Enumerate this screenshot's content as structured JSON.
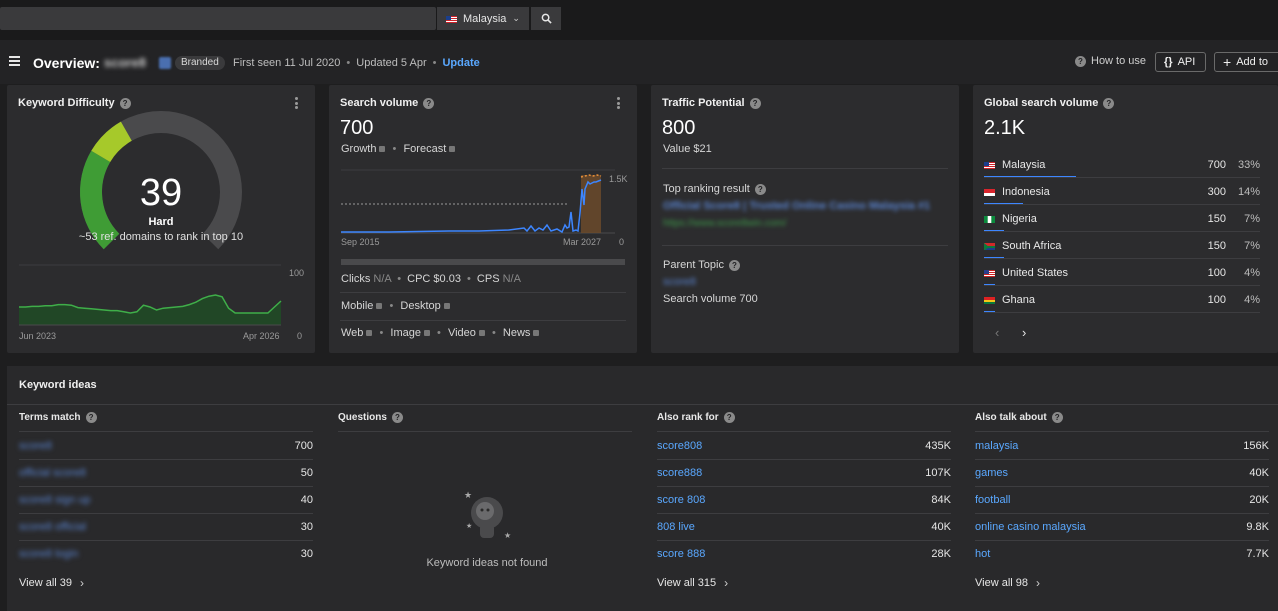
{
  "topbar": {
    "country": "Malaysia"
  },
  "header": {
    "title": "Overview:",
    "keyword": "score8",
    "badge": "Branded",
    "first_seen": "First seen 11 Jul 2020",
    "updated": "Updated 5 Apr",
    "update_link": "Update",
    "how_to_use": "How to use",
    "api": "API",
    "add_to": "Add to"
  },
  "kd": {
    "title": "Keyword Difficulty",
    "value": "39",
    "level": "Hard",
    "subtitle": "~53 ref. domains to rank in top 10",
    "ymax": "100",
    "ymin": "0",
    "x_start": "Jun 2023",
    "x_end": "Apr 2026",
    "gauge_fraction": 0.39,
    "series": [
      30,
      30,
      31,
      31,
      32,
      32,
      34,
      34,
      33,
      29,
      28,
      27,
      26,
      25,
      24,
      24,
      22,
      20,
      22,
      33,
      30,
      25,
      28,
      29,
      30,
      31,
      34,
      38,
      44,
      48,
      50,
      47,
      28,
      20,
      20,
      20,
      20,
      20,
      20,
      30,
      40
    ]
  },
  "sv": {
    "title": "Search volume",
    "value": "700",
    "growth": "Growth",
    "forecast": "Forecast",
    "ymax": "1.5K",
    "ymin": "0",
    "x_start": "Sep 2015",
    "x_end": "Mar 2027",
    "clicks": "Clicks",
    "clicks_val": "N/A",
    "cpc": "CPC $0.03",
    "cps": "CPS",
    "cps_val": "N/A",
    "mobile": "Mobile",
    "desktop": "Desktop",
    "web": "Web",
    "image": "Image",
    "video": "Video",
    "news": "News"
  },
  "tp": {
    "title": "Traffic Potential",
    "value": "800",
    "value_label": "Value $21",
    "top_ranking": "Top ranking result",
    "result_title": "Official Score8 | Trusted Online Casino Malaysia #1",
    "result_url": "https://www.score8win.com/",
    "parent_topic": "Parent Topic",
    "parent_kw": "score8",
    "parent_sv": "Search volume 700"
  },
  "gsv": {
    "title": "Global search volume",
    "value": "2.1K",
    "rows": [
      {
        "country": "Malaysia",
        "value": "700",
        "pct": "33%",
        "share": 0.33
      },
      {
        "country": "Indonesia",
        "value": "300",
        "pct": "14%",
        "share": 0.14
      },
      {
        "country": "Nigeria",
        "value": "150",
        "pct": "7%",
        "share": 0.07
      },
      {
        "country": "South Africa",
        "value": "150",
        "pct": "7%",
        "share": 0.07
      },
      {
        "country": "United States",
        "value": "100",
        "pct": "4%",
        "share": 0.04
      },
      {
        "country": "Ghana",
        "value": "100",
        "pct": "4%",
        "share": 0.04
      }
    ]
  },
  "ideas": {
    "title": "Keyword ideas",
    "terms_match": {
      "title": "Terms match",
      "rows": [
        {
          "kw": "score8",
          "v": "700"
        },
        {
          "kw": "official score8",
          "v": "50"
        },
        {
          "kw": "score8 sign up",
          "v": "40"
        },
        {
          "kw": "score8 official",
          "v": "30"
        },
        {
          "kw": "score8 login",
          "v": "30"
        }
      ],
      "view_all": "View all 39"
    },
    "questions": {
      "title": "Questions",
      "empty": "Keyword ideas not found"
    },
    "also_rank": {
      "title": "Also rank for",
      "rows": [
        {
          "kw": "score808",
          "v": "435K"
        },
        {
          "kw": "score888",
          "v": "107K"
        },
        {
          "kw": "score 808",
          "v": "84K"
        },
        {
          "kw": "808 live",
          "v": "40K"
        },
        {
          "kw": "score 888",
          "v": "28K"
        }
      ],
      "view_all": "View all 315"
    },
    "also_talk": {
      "title": "Also talk about",
      "rows": [
        {
          "kw": "malaysia",
          "v": "156K"
        },
        {
          "kw": "games",
          "v": "40K"
        },
        {
          "kw": "football",
          "v": "20K"
        },
        {
          "kw": "online casino malaysia",
          "v": "9.8K"
        },
        {
          "kw": "hot",
          "v": "7.7K"
        }
      ],
      "view_all": "View all 98"
    }
  }
}
